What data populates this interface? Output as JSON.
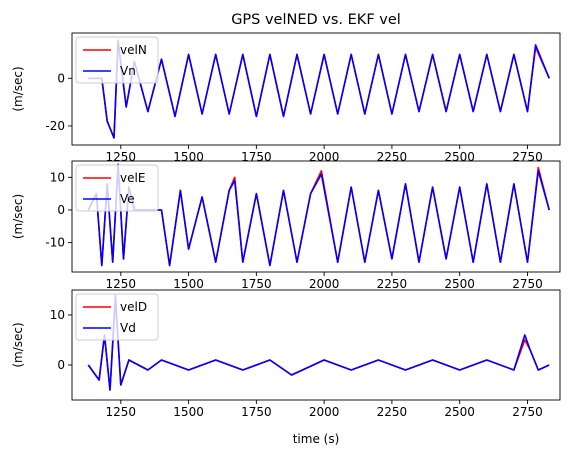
{
  "figure": {
    "title": "GPS velNED vs. EKF vel",
    "xlabel": "time (s)"
  },
  "colors": {
    "gps": "#ff0000",
    "ekf": "#0000ff"
  },
  "chart_data": [
    {
      "type": "line",
      "ylabel": "(m/sec)",
      "xlim": [
        1070,
        2870
      ],
      "ylim": [
        -28,
        19
      ],
      "xticks": [
        1250,
        1500,
        1750,
        2000,
        2250,
        2500,
        2750
      ],
      "yticks": [
        -20,
        0
      ],
      "legend": "top-left",
      "series": [
        {
          "name": "velN",
          "color": "#ff0000",
          "x": [
            1130,
            1180,
            1200,
            1225,
            1240,
            1270,
            1300,
            1350,
            1400,
            1450,
            1500,
            1550,
            1600,
            1650,
            1700,
            1750,
            1800,
            1850,
            1900,
            1950,
            2000,
            2050,
            2100,
            2150,
            2200,
            2250,
            2300,
            2350,
            2400,
            2450,
            2500,
            2550,
            2600,
            2650,
            2700,
            2750,
            2780,
            2830
          ],
          "y": [
            0,
            0,
            -18,
            -25,
            15,
            -12,
            7,
            -14,
            8,
            -16,
            10,
            -15,
            10,
            -15,
            10,
            -16,
            10,
            -16,
            10,
            -15,
            10,
            -15,
            10,
            -15,
            10,
            -15,
            10,
            -14,
            10,
            -14,
            10,
            -14,
            10,
            -14,
            10,
            -14,
            13,
            0
          ]
        },
        {
          "name": "Vn",
          "color": "#0000ff",
          "x": [
            1130,
            1180,
            1200,
            1225,
            1240,
            1270,
            1300,
            1350,
            1400,
            1450,
            1500,
            1550,
            1600,
            1650,
            1700,
            1750,
            1800,
            1850,
            1900,
            1950,
            2000,
            2050,
            2100,
            2150,
            2200,
            2250,
            2300,
            2350,
            2400,
            2450,
            2500,
            2550,
            2600,
            2650,
            2700,
            2750,
            2780,
            2830
          ],
          "y": [
            0,
            0,
            -18,
            -25,
            16,
            -12,
            7,
            -14,
            8,
            -16,
            10,
            -15,
            10,
            -15,
            10,
            -16,
            10,
            -16,
            10,
            -15,
            10,
            -15,
            10,
            -15,
            10,
            -15,
            10,
            -14,
            10,
            -14,
            10,
            -14,
            10,
            -14,
            10,
            -14,
            14,
            0
          ]
        }
      ]
    },
    {
      "type": "line",
      "ylabel": "(m/sec)",
      "xlim": [
        1070,
        2870
      ],
      "ylim": [
        -19,
        15
      ],
      "xticks": [
        1250,
        1500,
        1750,
        2000,
        2250,
        2500,
        2750
      ],
      "yticks": [
        -10,
        0,
        10
      ],
      "legend": "top-left",
      "series": [
        {
          "name": "velE",
          "color": "#ff0000",
          "x": [
            1130,
            1160,
            1180,
            1200,
            1220,
            1240,
            1260,
            1280,
            1300,
            1350,
            1400,
            1430,
            1470,
            1500,
            1550,
            1600,
            1650,
            1670,
            1700,
            1750,
            1800,
            1850,
            1900,
            1950,
            1990,
            2050,
            2100,
            2150,
            2200,
            2250,
            2300,
            2350,
            2400,
            2450,
            2500,
            2550,
            2600,
            2650,
            2700,
            2750,
            2790,
            2830
          ],
          "y": [
            0,
            5,
            -17,
            8,
            -16,
            14,
            -15,
            7,
            0,
            0,
            0,
            -17,
            6,
            -12,
            4,
            -16,
            6,
            10,
            -16,
            5,
            -17,
            6,
            -16,
            5,
            12,
            -16,
            7,
            -16,
            6,
            -15,
            8,
            -16,
            7,
            -15,
            7,
            -16,
            8,
            -16,
            8,
            -16,
            13,
            0
          ]
        },
        {
          "name": "Ve",
          "color": "#0000ff",
          "x": [
            1130,
            1160,
            1180,
            1200,
            1220,
            1240,
            1260,
            1280,
            1300,
            1350,
            1400,
            1430,
            1470,
            1500,
            1550,
            1600,
            1650,
            1670,
            1700,
            1750,
            1800,
            1850,
            1900,
            1950,
            1990,
            2050,
            2100,
            2150,
            2200,
            2250,
            2300,
            2350,
            2400,
            2450,
            2500,
            2550,
            2600,
            2650,
            2700,
            2750,
            2790,
            2830
          ],
          "y": [
            0,
            5,
            -17,
            8,
            -16,
            14,
            -15,
            7,
            0,
            0,
            0,
            -17,
            6,
            -12,
            4,
            -16,
            6,
            9,
            -16,
            5,
            -17,
            6,
            -16,
            5,
            11,
            -16,
            7,
            -16,
            6,
            -15,
            8,
            -16,
            7,
            -15,
            7,
            -16,
            8,
            -16,
            8,
            -16,
            12,
            0
          ]
        }
      ]
    },
    {
      "type": "line",
      "ylabel": "(m/sec)",
      "xlim": [
        1070,
        2870
      ],
      "ylim": [
        -7,
        15
      ],
      "xticks": [
        1250,
        1500,
        1750,
        2000,
        2250,
        2500,
        2750
      ],
      "yticks": [
        0,
        10
      ],
      "legend": "top-left",
      "series": [
        {
          "name": "velD",
          "color": "#ff0000",
          "x": [
            1130,
            1170,
            1190,
            1210,
            1230,
            1250,
            1280,
            1350,
            1400,
            1500,
            1600,
            1700,
            1800,
            1880,
            2000,
            2100,
            2200,
            2300,
            2400,
            2500,
            2600,
            2700,
            2740,
            2760,
            2790,
            2830
          ],
          "y": [
            0,
            -3,
            6,
            -5,
            13,
            -4,
            1,
            -1,
            1,
            -1,
            1,
            -1,
            1,
            -2,
            1,
            -1,
            1,
            -1,
            1,
            -1,
            1,
            -1,
            5,
            3,
            -1,
            0
          ]
        },
        {
          "name": "Vd",
          "color": "#0000ff",
          "x": [
            1130,
            1170,
            1190,
            1210,
            1230,
            1250,
            1280,
            1350,
            1400,
            1500,
            1600,
            1700,
            1800,
            1880,
            2000,
            2100,
            2200,
            2300,
            2400,
            2500,
            2600,
            2700,
            2740,
            2760,
            2790,
            2830
          ],
          "y": [
            0,
            -3,
            6,
            -5,
            14,
            -4,
            1,
            -1,
            1,
            -1,
            1,
            -1,
            1,
            -2,
            1,
            -1,
            1,
            -1,
            1,
            -1,
            1,
            -1,
            6,
            3,
            -1,
            0
          ]
        }
      ]
    }
  ]
}
